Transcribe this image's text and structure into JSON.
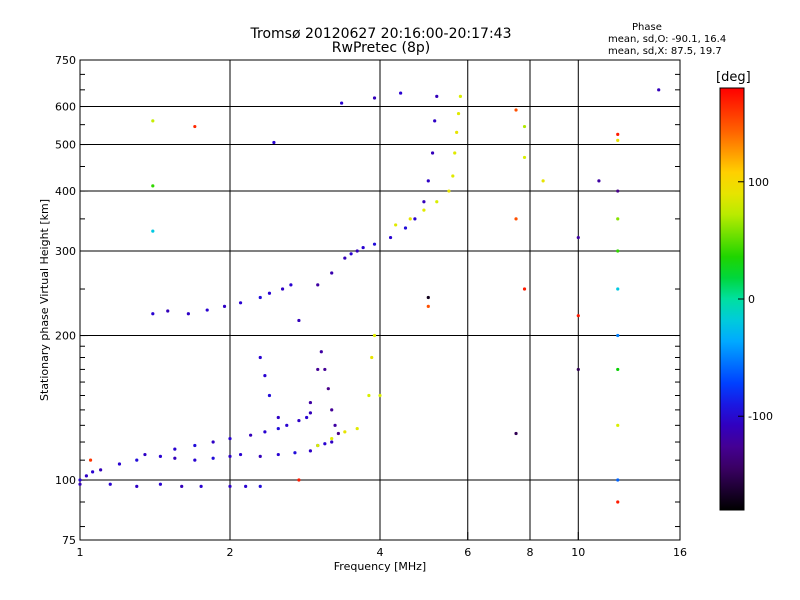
{
  "header": {
    "title_line1": "Tromsø 20120627 20:16:00-20:17:43",
    "title_line2": "RwPretec (8p)"
  },
  "phase_box": {
    "heading": "Phase",
    "line_o": "mean, sd,O: -90.1, 16.4",
    "line_x": "mean, sd,X: 87.5, 19.7"
  },
  "colorbar": {
    "unit_label": "[deg]",
    "ticks": [
      {
        "label": "100",
        "value": 100
      },
      {
        "label": "0",
        "value": 0
      },
      {
        "label": "-100",
        "value": -100
      }
    ],
    "range": [
      -180,
      180
    ]
  },
  "chart_data": {
    "type": "scatter",
    "xlabel": "Frequency [MHz]",
    "ylabel": "Stationary phase Virtual Height [km]",
    "xscale": "log",
    "yscale": "log",
    "xlim": [
      1,
      16
    ],
    "ylim": [
      75,
      750
    ],
    "xticks": [
      {
        "label": "1",
        "value": 1
      },
      {
        "label": "2",
        "value": 2
      },
      {
        "label": "4",
        "value": 4
      },
      {
        "label": "6",
        "value": 6
      },
      {
        "label": "8",
        "value": 8
      },
      {
        "label": "10",
        "value": 10
      },
      {
        "label": "16",
        "value": 16
      }
    ],
    "yticks": [
      {
        "label": "75",
        "value": 75
      },
      {
        "label": "100",
        "value": 100
      },
      {
        "label": "200",
        "value": 200
      },
      {
        "label": "300",
        "value": 300
      },
      {
        "label": "400",
        "value": 400
      },
      {
        "label": "500",
        "value": 500
      },
      {
        "label": "600",
        "value": 600
      },
      {
        "label": "750",
        "value": 750
      }
    ],
    "gridlines_x": [
      1,
      2,
      4,
      6,
      8,
      10,
      16
    ],
    "gridlines_y": [
      100,
      200,
      300,
      400,
      500,
      600
    ],
    "grid": true,
    "color_encoding": "phase [deg]",
    "series": [
      {
        "points": [
          [
            1.0,
            100,
            -100
          ],
          [
            1.03,
            102,
            -105
          ],
          [
            1.06,
            104,
            -100
          ],
          [
            1.1,
            105,
            -110
          ],
          [
            1.2,
            108,
            -100
          ],
          [
            1.3,
            110,
            -95
          ],
          [
            1.35,
            113,
            -105
          ],
          [
            1.45,
            112,
            -100
          ],
          [
            1.55,
            111,
            -110
          ],
          [
            1.7,
            110,
            -100
          ],
          [
            1.85,
            111,
            -95
          ],
          [
            2.0,
            112,
            -105
          ],
          [
            2.1,
            113,
            -100
          ],
          [
            2.3,
            112,
            -110
          ],
          [
            2.5,
            113,
            -100
          ],
          [
            2.7,
            114,
            -95
          ],
          [
            2.9,
            115,
            -105
          ],
          [
            3.0,
            118,
            -100
          ],
          [
            3.1,
            119,
            -100
          ],
          [
            3.2,
            120,
            -105
          ]
        ]
      },
      {
        "points": [
          [
            1.55,
            116,
            -100
          ],
          [
            1.7,
            118,
            -95
          ],
          [
            1.85,
            120,
            -105
          ],
          [
            2.0,
            122,
            -100
          ],
          [
            2.2,
            124,
            -110
          ],
          [
            2.35,
            126,
            -100
          ],
          [
            2.5,
            128,
            -95
          ],
          [
            2.6,
            130,
            -100
          ],
          [
            2.75,
            133,
            -105
          ],
          [
            2.85,
            135,
            -100
          ],
          [
            2.9,
            138,
            -110
          ]
        ]
      },
      {
        "points": [
          [
            1.0,
            98,
            -110
          ],
          [
            1.15,
            98,
            -100
          ],
          [
            1.3,
            97,
            -105
          ],
          [
            1.45,
            98,
            -100
          ],
          [
            1.6,
            97,
            -110
          ],
          [
            1.75,
            97,
            -100
          ],
          [
            2.0,
            97,
            -105
          ],
          [
            2.15,
            97,
            -100
          ],
          [
            2.3,
            97,
            -95
          ]
        ]
      },
      {
        "points": [
          [
            1.4,
            222,
            -100
          ],
          [
            1.5,
            225,
            -110
          ],
          [
            1.65,
            222,
            -105
          ],
          [
            1.8,
            226,
            -100
          ],
          [
            1.95,
            230,
            -105
          ],
          [
            2.1,
            234,
            -100
          ],
          [
            2.3,
            240,
            -95
          ],
          [
            2.4,
            245,
            -100
          ],
          [
            2.55,
            250,
            -105
          ],
          [
            2.65,
            255,
            -100
          ]
        ]
      },
      {
        "points": [
          [
            2.75,
            215,
            -110
          ],
          [
            3.0,
            255,
            -120
          ],
          [
            3.2,
            270,
            -115
          ],
          [
            3.4,
            290,
            -110
          ],
          [
            3.5,
            296,
            -100
          ],
          [
            3.6,
            300,
            -110
          ],
          [
            3.7,
            305,
            -100
          ],
          [
            3.9,
            310,
            -95
          ],
          [
            4.2,
            320,
            -100
          ],
          [
            4.5,
            335,
            -95
          ],
          [
            4.7,
            350,
            -100
          ],
          [
            4.9,
            380,
            -110
          ],
          [
            5.0,
            420,
            -105
          ],
          [
            5.1,
            480,
            -110
          ],
          [
            5.15,
            560,
            -105
          ],
          [
            5.2,
            630,
            -110
          ]
        ]
      },
      {
        "points": [
          [
            2.9,
            145,
            -120
          ],
          [
            3.0,
            170,
            -125
          ],
          [
            3.05,
            185,
            -120
          ],
          [
            3.1,
            170,
            -125
          ],
          [
            3.15,
            155,
            -130
          ],
          [
            3.2,
            140,
            -125
          ],
          [
            3.25,
            130,
            -120
          ],
          [
            3.3,
            125,
            -130
          ]
        ]
      },
      {
        "points": [
          [
            2.3,
            180,
            -100
          ],
          [
            2.35,
            165,
            -100
          ],
          [
            2.4,
            150,
            -95
          ],
          [
            2.5,
            135,
            -105
          ]
        ]
      },
      {
        "points": [
          [
            3.0,
            118,
            80
          ],
          [
            3.2,
            122,
            85
          ],
          [
            3.4,
            126,
            90
          ],
          [
            3.6,
            128,
            85
          ],
          [
            3.8,
            150,
            80
          ],
          [
            3.85,
            180,
            90
          ],
          [
            3.9,
            200,
            85
          ],
          [
            4.0,
            150,
            80
          ]
        ]
      },
      {
        "points": [
          [
            4.3,
            340,
            85
          ],
          [
            4.6,
            350,
            90
          ],
          [
            4.9,
            365,
            85
          ],
          [
            5.2,
            380,
            80
          ],
          [
            5.5,
            400,
            90
          ],
          [
            5.6,
            430,
            85
          ],
          [
            5.65,
            480,
            85
          ],
          [
            5.7,
            530,
            90
          ],
          [
            5.75,
            580,
            85
          ],
          [
            5.8,
            630,
            80
          ]
        ]
      },
      {
        "points": [
          [
            1.4,
            560,
            75
          ],
          [
            1.7,
            545,
            165
          ],
          [
            2.45,
            505,
            -100
          ],
          [
            3.35,
            610,
            -100
          ],
          [
            3.9,
            625,
            -110
          ],
          [
            4.4,
            640,
            -100
          ],
          [
            7.5,
            590,
            150
          ],
          [
            7.8,
            545,
            70
          ],
          [
            7.8,
            470,
            80
          ],
          [
            7.5,
            350,
            150
          ],
          [
            7.8,
            250,
            170
          ],
          [
            8.5,
            420,
            90
          ],
          [
            11.0,
            420,
            -120
          ],
          [
            12.0,
            525,
            170
          ],
          [
            12.0,
            510,
            90
          ],
          [
            12.0,
            400,
            -130
          ],
          [
            12.0,
            350,
            60
          ],
          [
            12.0,
            300,
            40
          ],
          [
            12.0,
            250,
            -20
          ],
          [
            12.0,
            200,
            -50
          ],
          [
            12.0,
            170,
            30
          ],
          [
            12.0,
            130,
            80
          ],
          [
            12.0,
            100,
            -60
          ],
          [
            12.0,
            90,
            170
          ],
          [
            14.5,
            650,
            -110
          ],
          [
            10.0,
            320,
            -120
          ],
          [
            10.0,
            220,
            170
          ],
          [
            10.0,
            170,
            -150
          ],
          [
            7.5,
            125,
            -150
          ],
          [
            5.0,
            240,
            -170
          ],
          [
            5.0,
            230,
            150
          ],
          [
            2.75,
            100,
            170
          ],
          [
            1.05,
            110,
            160
          ],
          [
            1.4,
            410,
            40
          ],
          [
            1.4,
            330,
            -20
          ]
        ]
      }
    ]
  }
}
